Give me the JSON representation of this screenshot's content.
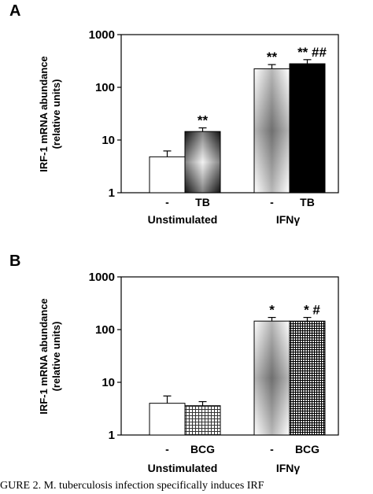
{
  "panels": [
    {
      "label": "A",
      "chart_data": {
        "type": "bar",
        "scale": "log",
        "ylim": [
          1,
          1000
        ],
        "yticks": [
          "1",
          "10",
          "100",
          "1000"
        ],
        "ylabel_lines": [
          "IRF-1 mRNA abundance",
          "(relative units)"
        ],
        "categories": [
          "-",
          "TB",
          "-",
          "TB"
        ],
        "groups": [
          "Unstimulated",
          "IFNγ"
        ],
        "bars": [
          {
            "category": "-",
            "group": "Unstimulated",
            "value": 4.8,
            "error": 1.4,
            "fill": "white",
            "annotation": ""
          },
          {
            "category": "TB",
            "group": "Unstimulated",
            "value": 14.5,
            "error": 2.5,
            "fill": "gradient-dark",
            "annotation": "**"
          },
          {
            "category": "-",
            "group": "IFNγ",
            "value": 225,
            "error": 45,
            "fill": "gradient-light",
            "annotation": "**"
          },
          {
            "category": "TB",
            "group": "IFNγ",
            "value": 280,
            "error": 55,
            "fill": "black",
            "annotation": "** ##"
          }
        ]
      }
    },
    {
      "label": "B",
      "chart_data": {
        "type": "bar",
        "scale": "log",
        "ylim": [
          1,
          1000
        ],
        "yticks": [
          "1",
          "10",
          "100",
          "1000"
        ],
        "ylabel_lines": [
          "IRF-1 mRNA abundance",
          "(relative units)"
        ],
        "categories": [
          "-",
          "BCG",
          "-",
          "BCG"
        ],
        "groups": [
          "Unstimulated",
          "IFNγ"
        ],
        "bars": [
          {
            "category": "-",
            "group": "Unstimulated",
            "value": 4.0,
            "error": 1.5,
            "fill": "white",
            "annotation": ""
          },
          {
            "category": "BCG",
            "group": "Unstimulated",
            "value": 3.6,
            "error": 0.7,
            "fill": "grid-light",
            "annotation": ""
          },
          {
            "category": "-",
            "group": "IFNγ",
            "value": 145,
            "error": 25,
            "fill": "gradient-light",
            "annotation": "*"
          },
          {
            "category": "BCG",
            "group": "IFNγ",
            "value": 145,
            "error": 25,
            "fill": "grid-dark",
            "annotation": "* #"
          }
        ]
      }
    }
  ],
  "caption": "GURE 2. M. tuberculosis infection specifically induces IRF"
}
